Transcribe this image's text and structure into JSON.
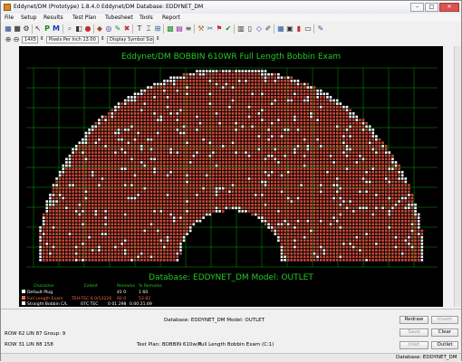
{
  "titlebar": {
    "title": "Eddynet/DM (Prototype) 1.8.4.0 Eddynet/DM   Database: EDDYNET_DM",
    "min": "–",
    "max": "□",
    "close": "✕"
  },
  "menu": [
    "File",
    "Setup",
    "Results",
    "Test Plan",
    "Tubesheet",
    "Tools",
    "Report"
  ],
  "zoombar": {
    "zoom_value": "14X5",
    "pixels_label": "Pixels Per Inch 13.00",
    "symbol_label": "Display Symbol Size 13"
  },
  "plot": {
    "heading": "Eddynet/DM BOBBIN 610WR Full Length Bobbin Exam",
    "database_line": "Database: EDDYNET_DM  Model:  OUTLET",
    "legend_headers": [
      "Character",
      "Extent",
      "Remarks",
      "% Remarks"
    ],
    "legend_rows": [
      {
        "name": "Default Plug",
        "extent": "",
        "remarks": "41 0",
        "pct": "1 60",
        "color": "#ffffff"
      },
      {
        "name": "Full Length Exam",
        "extent": "TEH-TEC 6.0/13220",
        "remarks": "60 0",
        "pct": "53.82",
        "color": "#ff6a4a"
      },
      {
        "name": "Straight Bobbin C/L",
        "extent": "07C TEC",
        "remarks": "0 01 298",
        "pct": "0.00 21.69",
        "color": "#ffffff"
      }
    ],
    "colors": {
      "background": "#000000",
      "grid": "#00c800",
      "tube": "#d04a3a",
      "plugged": "#ffffff",
      "heading": "#22cc22"
    }
  },
  "status": {
    "database_model": "Database: EDDYNET_DM  Model: OUTLET",
    "row_col_1": "ROW 62  LIN 87  Group: 9",
    "row_col_2": "ROW 31  LIN 88 158",
    "test_plan": "Test Plan: BOBBIN 610w/R",
    "exam": "Full Length Bobbin Exam (C:1)",
    "buttons": {
      "redraw": "Redraw",
      "invert": "Invert",
      "save": "Save",
      "clear": "Clear",
      "inlet": "Inlet",
      "outlet": "Outlet"
    }
  },
  "statusbar": {
    "database": "Database: EDDYNET_DM"
  }
}
